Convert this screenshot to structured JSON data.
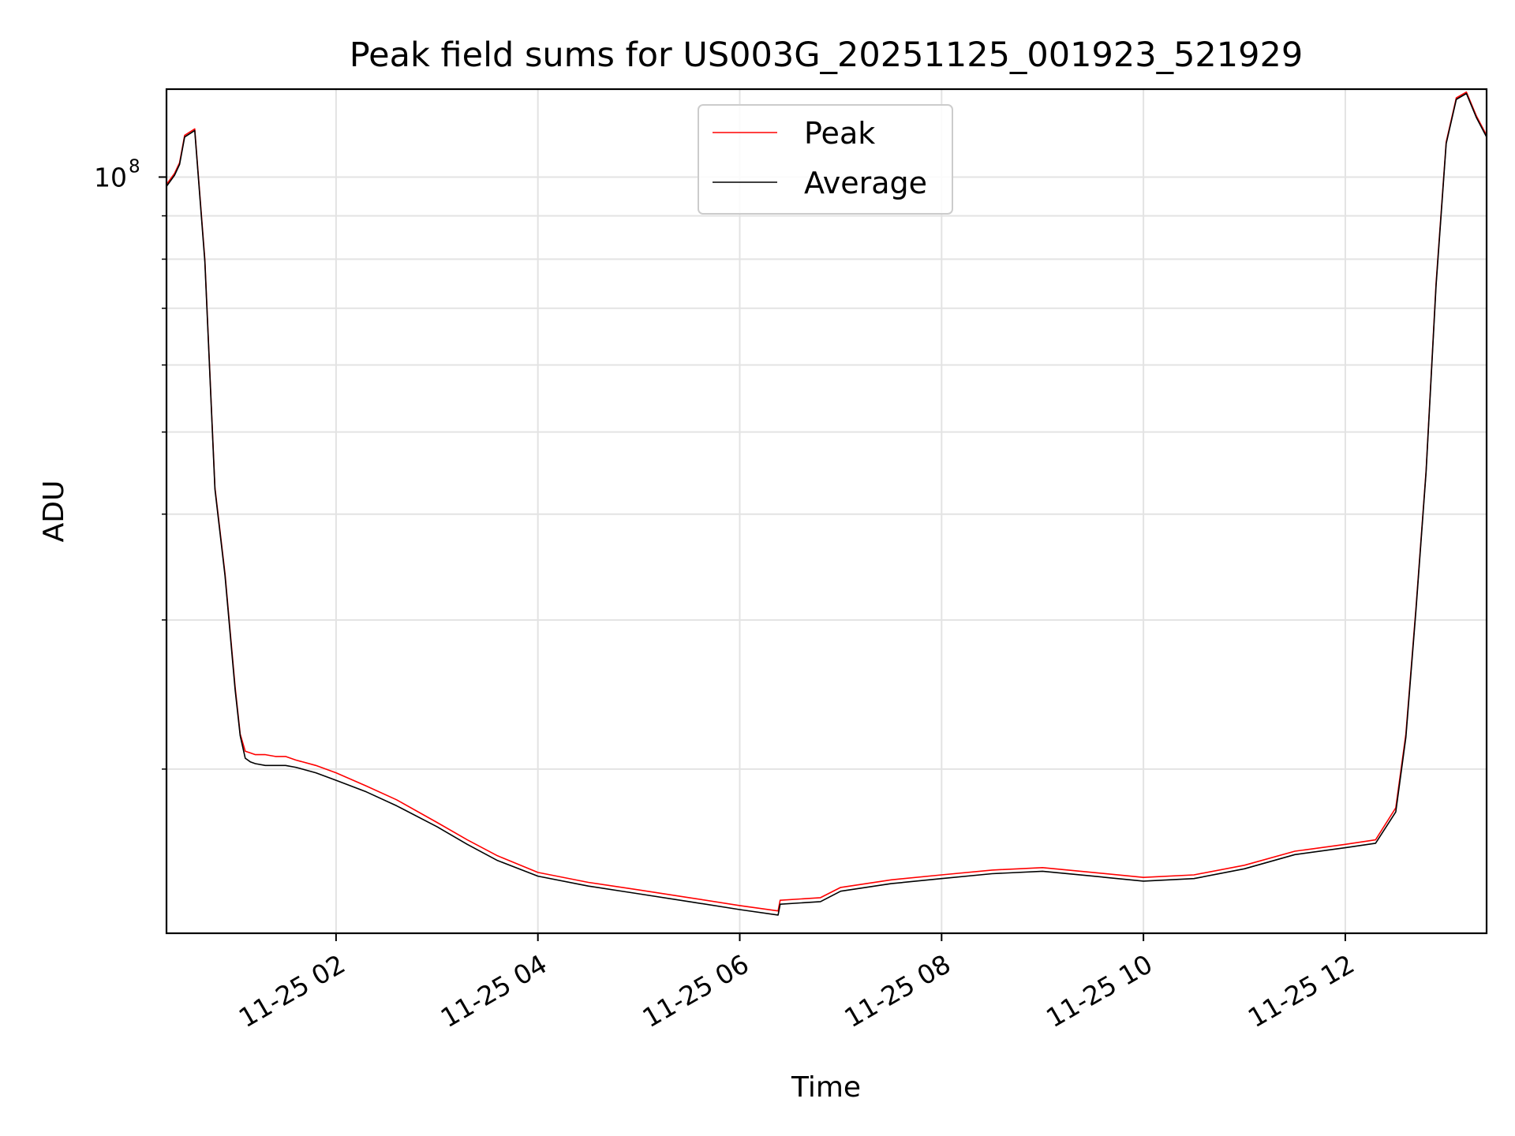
{
  "chart_data": {
    "type": "line",
    "title": "Peak field sums for US003G_20251125_001923_521929",
    "xlabel": "Time",
    "ylabel": "ADU",
    "yscale": "log",
    "ylim": [
      12800000,
      127000000
    ],
    "xlim_hours": [
      0.32,
      13.4
    ],
    "x_ticks": [
      {
        "h": 2,
        "label": "11-25 02"
      },
      {
        "h": 4,
        "label": "11-25 04"
      },
      {
        "h": 6,
        "label": "11-25 06"
      },
      {
        "h": 8,
        "label": "11-25 08"
      },
      {
        "h": 10,
        "label": "11-25 10"
      },
      {
        "h": 12,
        "label": "11-25 12"
      }
    ],
    "y_major_ticks": [
      {
        "v": 100000000,
        "base": "10",
        "exp": "8"
      }
    ],
    "y_minor_ticks": [
      20000000,
      30000000,
      40000000,
      50000000,
      60000000,
      70000000,
      80000000,
      90000000
    ],
    "grid": true,
    "legend_position": "upper-center",
    "colors": {
      "peak": "#ff0000",
      "average": "#000000"
    },
    "series": [
      {
        "name": "Peak",
        "x_hours": [
          0.32,
          0.4,
          0.45,
          0.5,
          0.6,
          0.7,
          0.8,
          0.9,
          1.0,
          1.05,
          1.1,
          1.15,
          1.2,
          1.3,
          1.4,
          1.5,
          1.6,
          1.8,
          2.0,
          2.3,
          2.6,
          3.0,
          3.3,
          3.6,
          4.0,
          4.5,
          5.0,
          5.5,
          6.0,
          6.38,
          6.4,
          6.8,
          7.0,
          7.5,
          8.0,
          8.5,
          9.0,
          9.5,
          10.0,
          10.5,
          11.0,
          11.5,
          12.0,
          12.3,
          12.5,
          12.6,
          12.7,
          12.8,
          12.9,
          13.0,
          13.1,
          13.2,
          13.3,
          13.4
        ],
        "values": [
          98000000,
          101000000,
          104000000,
          112000000,
          114000000,
          80000000,
          43000000,
          34000000,
          25000000,
          22000000,
          21000000,
          20900000,
          20800000,
          20800000,
          20700000,
          20700000,
          20500000,
          20200000,
          19800000,
          19100000,
          18400000,
          17300000,
          16500000,
          15800000,
          15100000,
          14700000,
          14400000,
          14100000,
          13800000,
          13600000,
          14000000,
          14100000,
          14500000,
          14800000,
          15000000,
          15200000,
          15300000,
          15100000,
          14900000,
          15000000,
          15400000,
          16000000,
          16300000,
          16500000,
          18000000,
          22000000,
          31000000,
          45000000,
          75000000,
          110000000,
          124000000,
          126000000,
          118000000,
          112000000
        ]
      },
      {
        "name": "Average",
        "x_hours": [
          0.32,
          0.4,
          0.45,
          0.5,
          0.6,
          0.7,
          0.8,
          0.9,
          1.0,
          1.05,
          1.1,
          1.15,
          1.2,
          1.3,
          1.4,
          1.5,
          1.6,
          1.8,
          2.0,
          2.3,
          2.6,
          3.0,
          3.3,
          3.6,
          4.0,
          4.5,
          5.0,
          5.5,
          6.0,
          6.38,
          6.4,
          6.8,
          7.0,
          7.5,
          8.0,
          8.5,
          9.0,
          9.5,
          10.0,
          10.5,
          11.0,
          11.5,
          12.0,
          12.3,
          12.5,
          12.6,
          12.7,
          12.8,
          12.9,
          13.0,
          13.1,
          13.2,
          13.3,
          13.4
        ],
        "values": [
          97500000,
          100500000,
          103500000,
          111500000,
          113500000,
          79500000,
          42800000,
          33800000,
          24800000,
          21900000,
          20600000,
          20400000,
          20300000,
          20200000,
          20200000,
          20200000,
          20100000,
          19800000,
          19400000,
          18800000,
          18100000,
          17100000,
          16300000,
          15600000,
          14950000,
          14550000,
          14250000,
          13950000,
          13650000,
          13450000,
          13850000,
          13950000,
          14350000,
          14650000,
          14850000,
          15050000,
          15150000,
          14950000,
          14750000,
          14850000,
          15250000,
          15850000,
          16150000,
          16350000,
          17800000,
          21800000,
          30800000,
          44800000,
          74500000,
          109500000,
          123500000,
          125500000,
          117500000,
          111500000
        ]
      }
    ]
  }
}
